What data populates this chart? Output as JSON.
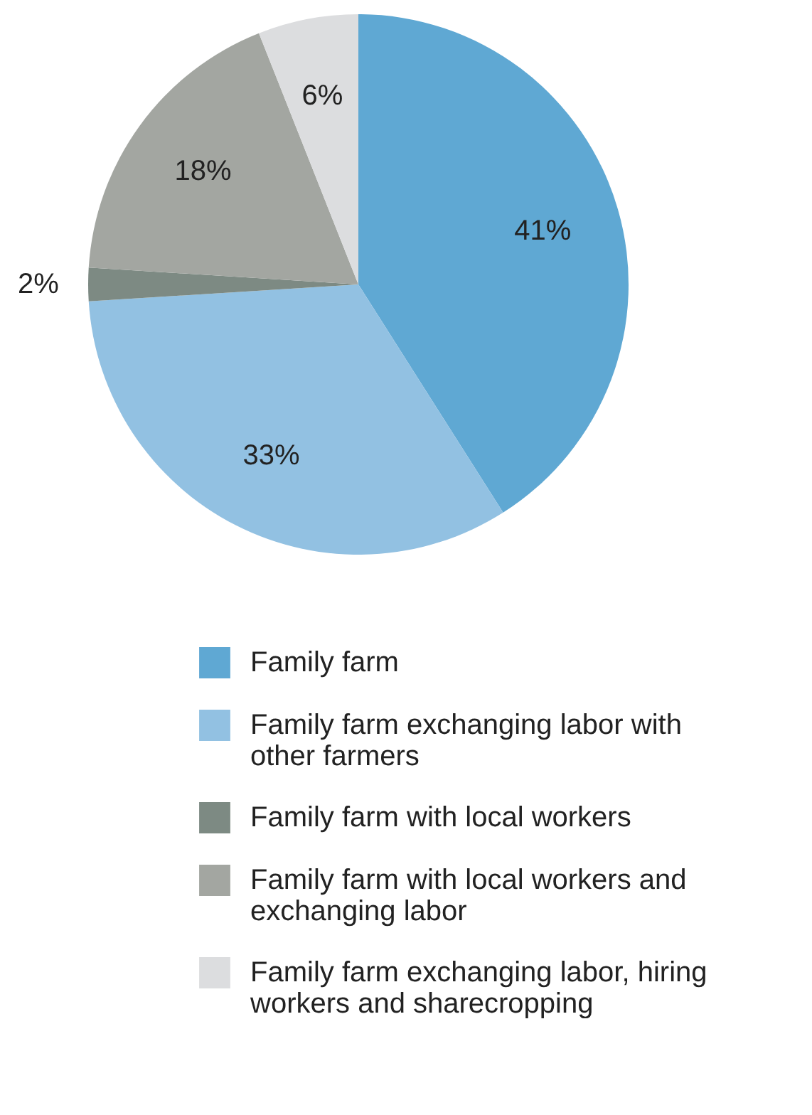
{
  "chart_data": {
    "type": "pie",
    "categories": [
      "Family farm",
      "Family farm exchanging labor with other farmers",
      "Family farm with local workers",
      "Family farm with local workers and exchanging labor",
      "Family farm exchanging labor, hiring workers and sharecropping"
    ],
    "values": [
      41,
      33,
      2,
      18,
      6
    ],
    "colors": [
      "#5fa8d3",
      "#92c1e2",
      "#7d8a83",
      "#a3a6a1",
      "#dcdddf"
    ],
    "value_labels": [
      "41%",
      "33%",
      "2%",
      "18%",
      "6%"
    ],
    "legend": "bottom"
  }
}
